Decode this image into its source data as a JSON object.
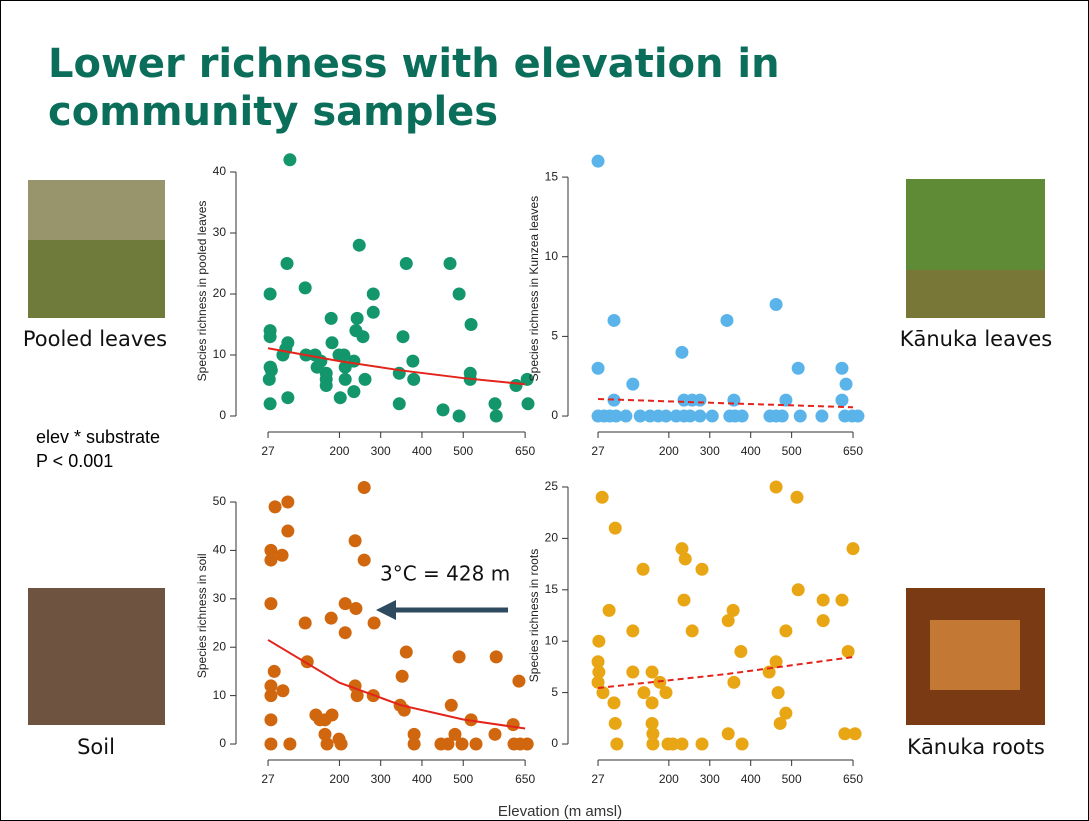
{
  "title": [
    "Lower richness with elevation in",
    "community samples"
  ],
  "captions": [
    "Pooled leaves",
    "Kānuka leaves",
    "Soil",
    "Kānuka roots"
  ],
  "stats": [
    "elev * substrate",
    "P < 0.001"
  ],
  "annotation": "3°C = 428 m",
  "xlabel": "Elevation (m amsl)",
  "chart_data": [
    {
      "type": "scatter",
      "ylabel": "Species richness in pooled leaves",
      "color": "#13966b",
      "x": [
        80,
        32,
        32,
        32,
        32,
        35,
        30,
        33,
        32,
        63,
        70,
        75,
        73,
        75,
        117,
        119,
        141,
        146,
        155,
        168,
        168,
        168,
        211,
        180,
        182,
        202,
        214,
        214,
        199,
        235,
        243,
        248,
        235,
        240,
        257,
        262,
        282,
        282,
        345,
        345,
        362,
        354,
        380,
        378,
        451,
        468,
        517,
        517,
        490,
        490,
        519,
        577,
        580,
        628,
        655,
        657
      ],
      "values": [
        42,
        20,
        14,
        13,
        8,
        7.5,
        6,
        8,
        2,
        10,
        11,
        12,
        25,
        3,
        21,
        10,
        10,
        8,
        9,
        7,
        6,
        5,
        10,
        16,
        12,
        3,
        8,
        6,
        10,
        9,
        16,
        28,
        4,
        14,
        13,
        6,
        17,
        20,
        7,
        2,
        25,
        13,
        6,
        9,
        1,
        25,
        7,
        6,
        20,
        0,
        15,
        2,
        0,
        5,
        6,
        2
      ],
      "trend": {
        "x": [
          27,
          200,
          350,
          500,
          650
        ],
        "values": [
          11.1,
          8.99,
          7.47,
          6.22,
          5.2
        ],
        "dashed": false,
        "color": "#e3241b"
      },
      "xlim": [
        0,
        680
      ],
      "ylim": [
        -2,
        43
      ],
      "xticks": [
        27,
        200,
        300,
        400,
        500,
        650
      ],
      "yticks": [
        0,
        10,
        20,
        30,
        40
      ]
    },
    {
      "type": "scatter",
      "ylabel": "Species richness in Kunzea leaves",
      "color": "#5ab4ea",
      "x": [
        27,
        27,
        66,
        66,
        112,
        27,
        42,
        56,
        71,
        95,
        130,
        154,
        174,
        193,
        218,
        237,
        252,
        276,
        306,
        349,
        362,
        379,
        447,
        462,
        477,
        521,
        574,
        630,
        648,
        662,
        232,
        237,
        257,
        276,
        342,
        359,
        462,
        486,
        516,
        623,
        633,
        623
      ],
      "values": [
        16,
        3,
        6,
        1,
        2,
        0,
        0,
        0,
        0,
        0,
        0,
        0,
        0,
        0,
        0,
        0,
        0,
        0,
        0,
        0,
        0,
        0,
        0,
        0,
        0,
        0,
        0,
        0,
        0,
        0,
        4,
        1,
        1,
        1,
        6,
        1,
        7,
        1,
        3,
        3,
        2,
        1
      ],
      "trend": {
        "x": [
          27,
          340,
          650
        ],
        "values": [
          1.07,
          0.8,
          0.55
        ],
        "dashed": true,
        "color": "#e3241b"
      },
      "xlim": [
        0,
        680
      ],
      "ylim": [
        -0.5,
        16.5
      ],
      "xticks": [
        27,
        200,
        300,
        400,
        500,
        650
      ],
      "yticks": [
        0,
        5,
        10,
        15
      ]
    },
    {
      "type": "scatter",
      "ylabel": "Species richness in soil",
      "color": "#d0670f",
      "x": [
        34,
        34,
        34,
        34,
        34,
        34,
        34,
        44,
        42,
        63,
        61,
        75,
        75,
        80,
        117,
        122,
        143,
        153,
        165,
        165,
        170,
        182,
        180,
        199,
        204,
        214,
        214,
        238,
        238,
        240,
        243,
        260,
        260,
        282,
        284,
        347,
        352,
        362,
        357,
        381,
        381,
        446,
        463,
        471,
        480,
        490,
        497,
        519,
        531,
        577,
        580,
        621,
        623,
        638,
        655,
        635
      ],
      "values": [
        0,
        5,
        10,
        12,
        29,
        40,
        38,
        49,
        15,
        11,
        39,
        50,
        44,
        0,
        25,
        17,
        6,
        5,
        5,
        2,
        0,
        6,
        26,
        1,
        0,
        23,
        29,
        42,
        12,
        28,
        10,
        38,
        53,
        10,
        25,
        8,
        14,
        19,
        7,
        2,
        0,
        0,
        0,
        8,
        2,
        18,
        0,
        5,
        0,
        2,
        18,
        4,
        0,
        0,
        0,
        13
      ],
      "trend": {
        "x": [
          27,
          200,
          350,
          500,
          650
        ],
        "values": [
          21.5,
          12.67,
          8.0,
          5.06,
          3.2
        ],
        "dashed": false,
        "color": "#e3241b"
      },
      "xlim": [
        0,
        680
      ],
      "ylim": [
        -2,
        55
      ],
      "xticks": [
        27,
        200,
        300,
        400,
        500,
        650
      ],
      "yticks": [
        0,
        10,
        20,
        30,
        40,
        50
      ]
    },
    {
      "type": "scatter",
      "ylabel": "Species richness in roots",
      "color": "#e8a615",
      "x": [
        37,
        69,
        29,
        27,
        29,
        27,
        39,
        54,
        66,
        69,
        73,
        112,
        112,
        137,
        139,
        159,
        159,
        159,
        161,
        161,
        178,
        193,
        198,
        210,
        232,
        240,
        237,
        257,
        232,
        281,
        281,
        345,
        357,
        359,
        376,
        379,
        345,
        445,
        462,
        462,
        467,
        472,
        486,
        486,
        513,
        516,
        577,
        577,
        623,
        638,
        650,
        630,
        655
      ],
      "values": [
        24,
        21,
        10,
        8,
        7,
        6,
        5,
        13,
        4,
        2,
        0,
        11,
        7,
        17,
        5,
        7,
        4,
        2,
        1,
        0,
        6,
        5,
        0,
        0,
        19,
        18,
        14,
        11,
        0,
        17,
        0,
        12,
        13,
        6,
        9,
        0,
        1,
        7,
        25,
        8,
        5,
        2,
        11,
        3,
        24,
        15,
        14,
        12,
        14,
        9,
        19,
        1,
        1
      ],
      "trend": {
        "x": [
          27,
          340,
          650
        ],
        "values": [
          5.45,
          6.8,
          8.46
        ],
        "dashed": true,
        "color": "#e3241b"
      },
      "xlim": [
        0,
        680
      ],
      "ylim": [
        -1,
        26
      ],
      "xticks": [
        27,
        200,
        300,
        400,
        500,
        650
      ],
      "yticks": [
        0,
        5,
        10,
        15,
        20,
        25
      ]
    }
  ]
}
